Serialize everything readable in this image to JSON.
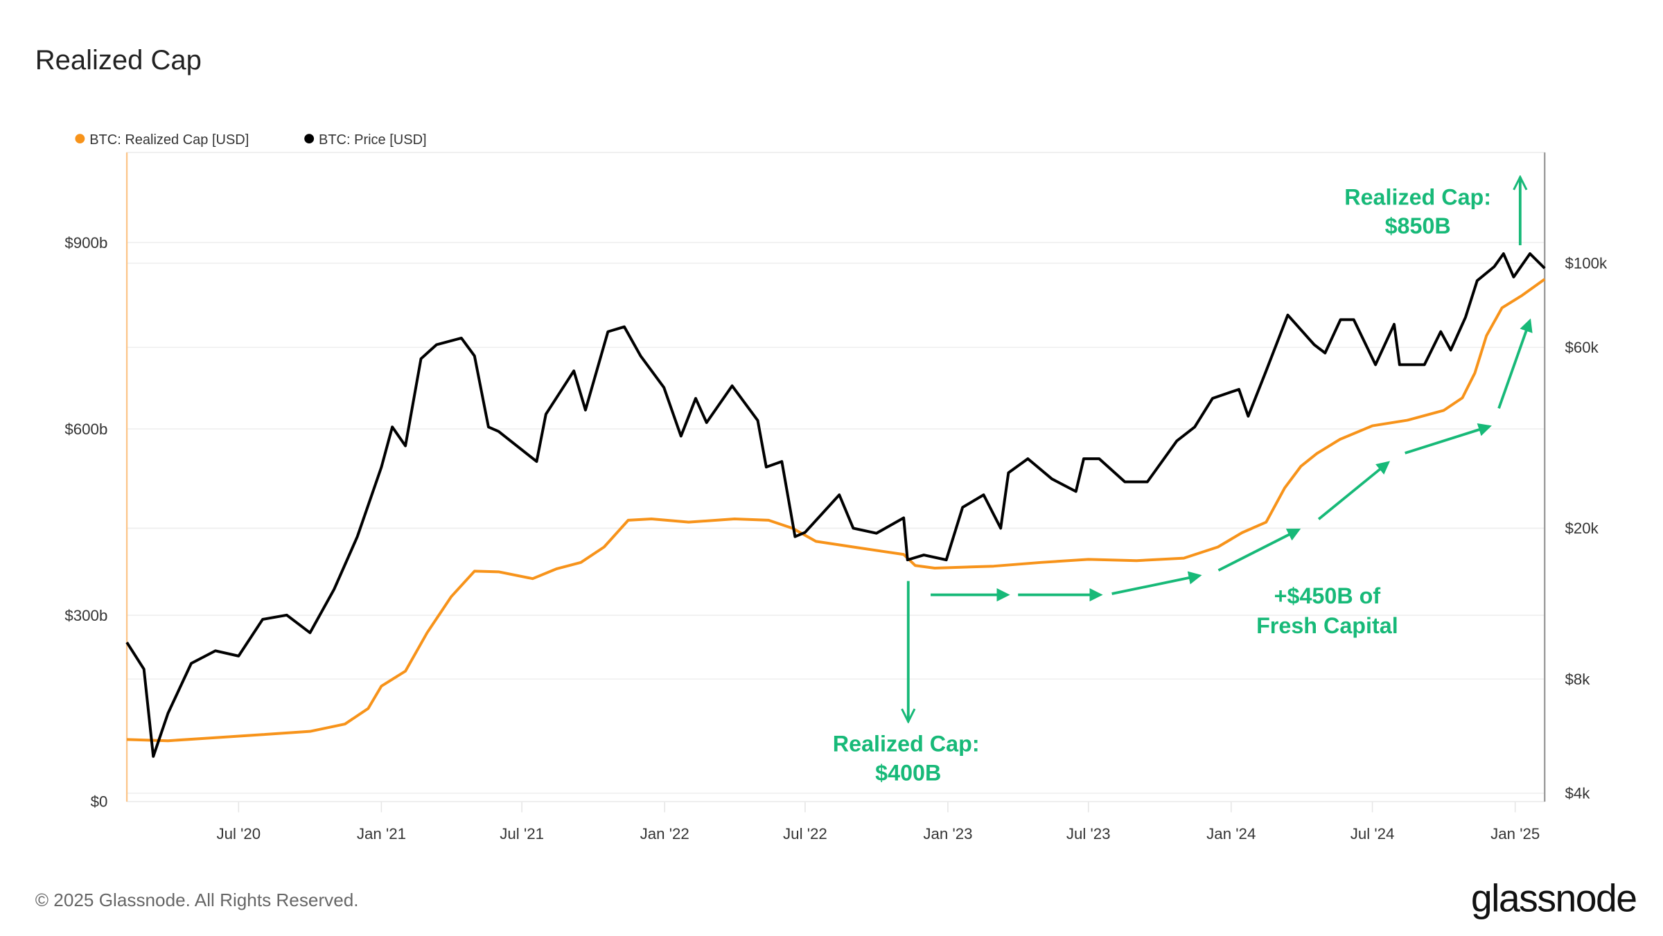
{
  "title": "Realized Cap",
  "footer": {
    "copyright": "© 2025 Glassnode. All Rights Reserved.",
    "logo": "glassnode"
  },
  "colors": {
    "realized_cap": "#f7931a",
    "price": "#000000",
    "annotation": "#17b978"
  },
  "annotations": {
    "top_line1": "Realized Cap:",
    "top_line2": "$850B",
    "bottom_line1": "Realized Cap:",
    "bottom_line2": "$400B",
    "mid_line1": "+$450B of",
    "mid_line2": "Fresh Capital"
  },
  "chart_data": {
    "type": "line",
    "title": "Realized Cap",
    "legend_position": "top-left",
    "grid": true,
    "xlim": [
      "2020-02-08",
      "2025-02-08"
    ],
    "x_ticks": [
      {
        "date": "2020-07-01",
        "label": "Jul '20"
      },
      {
        "date": "2021-01-01",
        "label": "Jan '21"
      },
      {
        "date": "2021-07-01",
        "label": "Jul '21"
      },
      {
        "date": "2022-01-01",
        "label": "Jan '22"
      },
      {
        "date": "2022-07-01",
        "label": "Jul '22"
      },
      {
        "date": "2023-01-01",
        "label": "Jan '23"
      },
      {
        "date": "2023-07-01",
        "label": "Jul '23"
      },
      {
        "date": "2024-01-01",
        "label": "Jan '24"
      },
      {
        "date": "2024-07-01",
        "label": "Jul '24"
      },
      {
        "date": "2025-01-01",
        "label": "Jan '25"
      }
    ],
    "y_left": {
      "scale": "linear",
      "unit": "USD billions",
      "lim": [
        0,
        1045
      ],
      "ticks": [
        {
          "value": 0,
          "label": "$0"
        },
        {
          "value": 300,
          "label": "$300b"
        },
        {
          "value": 600,
          "label": "$600b"
        },
        {
          "value": 900,
          "label": "$900b"
        }
      ]
    },
    "y_right": {
      "scale": "log",
      "unit": "USD",
      "lim": [
        3800,
        196000
      ],
      "ticks": [
        {
          "value": 4000,
          "label": "$4k"
        },
        {
          "value": 8000,
          "label": "$8k"
        },
        {
          "value": 20000,
          "label": "$20k"
        },
        {
          "value": 60000,
          "label": "$60k"
        },
        {
          "value": 100000,
          "label": "$100k"
        }
      ]
    },
    "series": [
      {
        "name": "BTC: Realized Cap [USD]",
        "axis": "left",
        "color": "#f7931a",
        "points": [
          [
            "2020-02-08",
            100
          ],
          [
            "2020-04-01",
            98
          ],
          [
            "2020-06-01",
            103
          ],
          [
            "2020-08-01",
            108
          ],
          [
            "2020-10-01",
            113
          ],
          [
            "2020-11-15",
            125
          ],
          [
            "2020-12-15",
            150
          ],
          [
            "2021-01-01",
            186
          ],
          [
            "2021-02-01",
            210
          ],
          [
            "2021-03-01",
            272
          ],
          [
            "2021-04-01",
            330
          ],
          [
            "2021-05-01",
            371
          ],
          [
            "2021-06-01",
            370
          ],
          [
            "2021-07-15",
            359
          ],
          [
            "2021-08-15",
            375
          ],
          [
            "2021-09-15",
            385
          ],
          [
            "2021-10-15",
            410
          ],
          [
            "2021-11-15",
            453
          ],
          [
            "2021-12-15",
            455
          ],
          [
            "2022-02-01",
            450
          ],
          [
            "2022-04-01",
            455
          ],
          [
            "2022-05-15",
            453
          ],
          [
            "2022-06-15",
            440
          ],
          [
            "2022-07-15",
            419
          ],
          [
            "2022-09-01",
            410
          ],
          [
            "2022-11-05",
            398
          ],
          [
            "2022-11-20",
            380
          ],
          [
            "2022-12-15",
            376
          ],
          [
            "2023-03-01",
            379
          ],
          [
            "2023-05-01",
            385
          ],
          [
            "2023-07-01",
            390
          ],
          [
            "2023-09-01",
            388
          ],
          [
            "2023-11-01",
            392
          ],
          [
            "2023-12-15",
            410
          ],
          [
            "2024-01-15",
            433
          ],
          [
            "2024-02-15",
            450
          ],
          [
            "2024-03-10",
            505
          ],
          [
            "2024-03-31",
            540
          ],
          [
            "2024-04-20",
            560
          ],
          [
            "2024-05-20",
            583
          ],
          [
            "2024-07-01",
            605
          ],
          [
            "2024-08-15",
            614
          ],
          [
            "2024-10-01",
            630
          ],
          [
            "2024-10-25",
            650
          ],
          [
            "2024-11-10",
            690
          ],
          [
            "2024-11-25",
            750
          ],
          [
            "2024-12-15",
            795
          ],
          [
            "2025-01-10",
            815
          ],
          [
            "2025-02-08",
            841
          ]
        ]
      },
      {
        "name": "BTC: Price [USD]",
        "axis": "right",
        "color": "#000000",
        "points": [
          [
            "2020-02-08",
            10000
          ],
          [
            "2020-03-01",
            8500
          ],
          [
            "2020-03-13",
            5000
          ],
          [
            "2020-04-01",
            6500
          ],
          [
            "2020-05-01",
            8800
          ],
          [
            "2020-06-01",
            9500
          ],
          [
            "2020-07-01",
            9200
          ],
          [
            "2020-08-01",
            11500
          ],
          [
            "2020-09-01",
            11800
          ],
          [
            "2020-10-01",
            10600
          ],
          [
            "2020-11-01",
            13800
          ],
          [
            "2020-12-01",
            19000
          ],
          [
            "2021-01-01",
            29000
          ],
          [
            "2021-01-15",
            37000
          ],
          [
            "2021-02-01",
            33000
          ],
          [
            "2021-02-21",
            56000
          ],
          [
            "2021-03-13",
            61000
          ],
          [
            "2021-04-14",
            63500
          ],
          [
            "2021-05-01",
            57000
          ],
          [
            "2021-05-19",
            37000
          ],
          [
            "2021-06-01",
            36000
          ],
          [
            "2021-07-20",
            30000
          ],
          [
            "2021-08-01",
            40000
          ],
          [
            "2021-09-06",
            52000
          ],
          [
            "2021-09-21",
            41000
          ],
          [
            "2021-10-20",
            66000
          ],
          [
            "2021-11-10",
            68000
          ],
          [
            "2021-12-01",
            57000
          ],
          [
            "2021-12-31",
            47000
          ],
          [
            "2022-01-22",
            35000
          ],
          [
            "2022-02-10",
            44000
          ],
          [
            "2022-02-24",
            38000
          ],
          [
            "2022-03-29",
            47500
          ],
          [
            "2022-05-01",
            38500
          ],
          [
            "2022-05-12",
            29000
          ],
          [
            "2022-06-01",
            30000
          ],
          [
            "2022-06-18",
            19000
          ],
          [
            "2022-07-01",
            19500
          ],
          [
            "2022-08-14",
            24500
          ],
          [
            "2022-09-01",
            20000
          ],
          [
            "2022-10-01",
            19400
          ],
          [
            "2022-11-05",
            21300
          ],
          [
            "2022-11-10",
            16500
          ],
          [
            "2022-12-01",
            17000
          ],
          [
            "2022-12-30",
            16500
          ],
          [
            "2023-01-20",
            22700
          ],
          [
            "2023-02-16",
            24500
          ],
          [
            "2023-03-10",
            20000
          ],
          [
            "2023-03-20",
            28000
          ],
          [
            "2023-04-14",
            30500
          ],
          [
            "2023-05-15",
            27000
          ],
          [
            "2023-06-15",
            25000
          ],
          [
            "2023-06-25",
            30500
          ],
          [
            "2023-07-15",
            30500
          ],
          [
            "2023-08-17",
            26500
          ],
          [
            "2023-09-15",
            26500
          ],
          [
            "2023-10-23",
            34000
          ],
          [
            "2023-11-15",
            37000
          ],
          [
            "2023-12-08",
            44000
          ],
          [
            "2024-01-11",
            46500
          ],
          [
            "2024-01-23",
            39500
          ],
          [
            "2024-02-15",
            52000
          ],
          [
            "2024-03-14",
            73000
          ],
          [
            "2024-04-17",
            61000
          ],
          [
            "2024-05-01",
            58000
          ],
          [
            "2024-05-21",
            71000
          ],
          [
            "2024-06-07",
            71000
          ],
          [
            "2024-07-05",
            54000
          ],
          [
            "2024-07-29",
            69000
          ],
          [
            "2024-08-05",
            54000
          ],
          [
            "2024-09-06",
            54000
          ],
          [
            "2024-09-27",
            66000
          ],
          [
            "2024-10-10",
            59000
          ],
          [
            "2024-10-29",
            72000
          ],
          [
            "2024-11-13",
            90000
          ],
          [
            "2024-12-05",
            98000
          ],
          [
            "2024-12-17",
            106000
          ],
          [
            "2024-12-30",
            92000
          ],
          [
            "2025-01-20",
            106000
          ],
          [
            "2025-02-08",
            97000
          ]
        ]
      }
    ]
  }
}
